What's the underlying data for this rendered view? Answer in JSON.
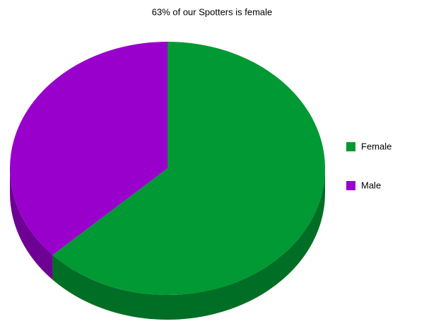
{
  "chart_data": {
    "type": "pie",
    "title": "63% of our Spotters is female",
    "categories": [
      "Female",
      "Male"
    ],
    "values": [
      63,
      37
    ],
    "colors": [
      "#009933",
      "#9900cc"
    ],
    "legend": "right"
  }
}
